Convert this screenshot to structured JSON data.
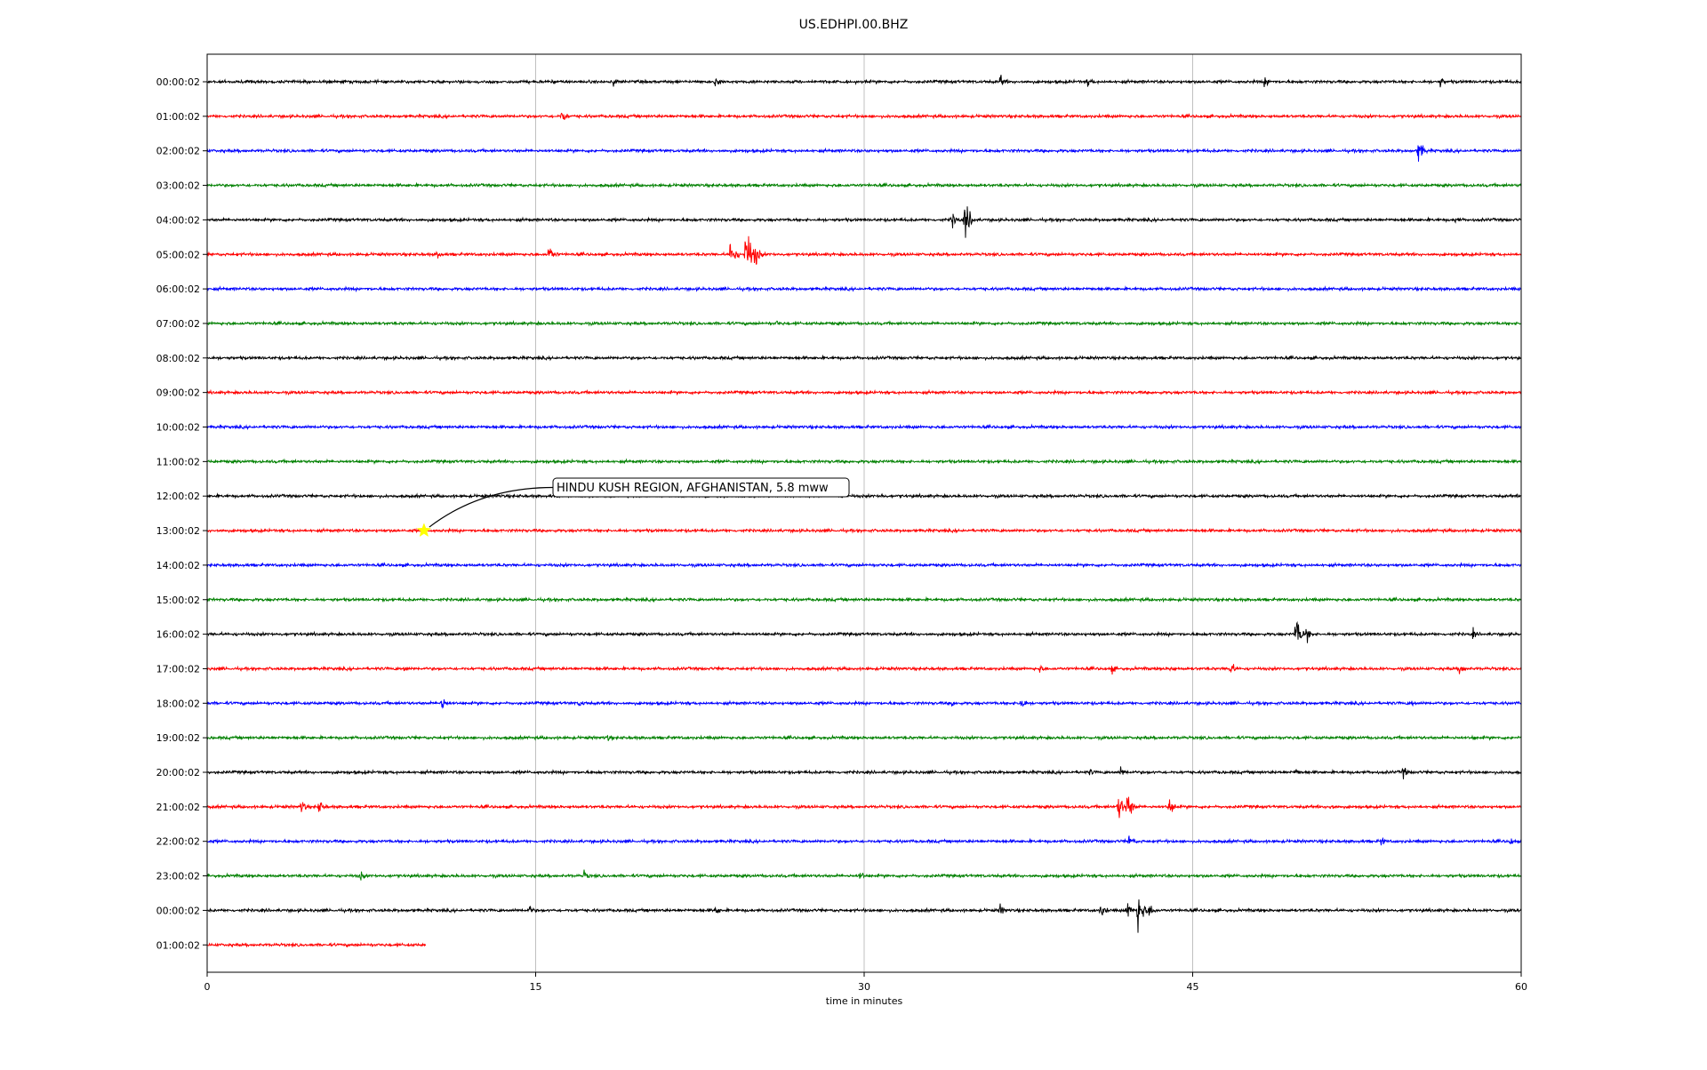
{
  "chart_data": {
    "type": "line",
    "title": "US.EDHPI.00.BHZ",
    "xlabel": "time in minutes",
    "ylabel": "",
    "xlim": [
      0,
      60
    ],
    "xticks": [
      0,
      15,
      30,
      45,
      60
    ],
    "grid": "vertical at x ticks",
    "row_labels": [
      "00:00:02",
      "01:00:02",
      "02:00:02",
      "03:00:02",
      "04:00:02",
      "05:00:02",
      "06:00:02",
      "07:00:02",
      "08:00:02",
      "09:00:02",
      "10:00:02",
      "11:00:02",
      "12:00:02",
      "13:00:02",
      "14:00:02",
      "15:00:02",
      "16:00:02",
      "17:00:02",
      "18:00:02",
      "19:00:02",
      "20:00:02",
      "21:00:02",
      "22:00:02",
      "23:00:02",
      "00:00:02",
      "01:00:02"
    ],
    "colors": [
      "#000000",
      "#ff0000",
      "#0000ff",
      "#008000"
    ],
    "last_trace_end_minute": 10,
    "annotation": {
      "text": "HINDU KUSH REGION, AFGHANISTAN, 5.8 mww",
      "row_index": 13,
      "minute": 9.9,
      "marker": "star",
      "marker_color": "#ffff00"
    },
    "events": [
      {
        "row": 0,
        "minute": 18.5,
        "amp": 0.35
      },
      {
        "row": 0,
        "minute": 23.2,
        "amp": 0.4
      },
      {
        "row": 0,
        "minute": 36.2,
        "amp": 0.45
      },
      {
        "row": 0,
        "minute": 40.2,
        "amp": 0.35
      },
      {
        "row": 0,
        "minute": 48.3,
        "amp": 0.4
      },
      {
        "row": 0,
        "minute": 56.3,
        "amp": 0.35
      },
      {
        "row": 1,
        "minute": 16.2,
        "amp": 0.5
      },
      {
        "row": 2,
        "minute": 55.3,
        "amp": 0.8
      },
      {
        "row": 4,
        "minute": 34.6,
        "amp": 1.3
      },
      {
        "row": 4,
        "minute": 34.0,
        "amp": 0.5
      },
      {
        "row": 4,
        "minute": 57.0,
        "amp": 0.25
      },
      {
        "row": 5,
        "minute": 10.5,
        "amp": 0.35
      },
      {
        "row": 5,
        "minute": 15.6,
        "amp": 0.65
      },
      {
        "row": 5,
        "minute": 23.9,
        "amp": 0.95
      },
      {
        "row": 5,
        "minute": 24.6,
        "amp": 2.0
      },
      {
        "row": 5,
        "minute": 25.0,
        "amp": 0.8
      },
      {
        "row": 7,
        "minute": 26.0,
        "amp": 0.2
      },
      {
        "row": 12,
        "minute": 30.8,
        "amp": 0.2
      },
      {
        "row": 16,
        "minute": 49.7,
        "amp": 1.2
      },
      {
        "row": 16,
        "minute": 50.2,
        "amp": 0.5
      },
      {
        "row": 16,
        "minute": 57.8,
        "amp": 0.3
      },
      {
        "row": 17,
        "minute": 9.0,
        "amp": 0.25
      },
      {
        "row": 17,
        "minute": 38.0,
        "amp": 0.3
      },
      {
        "row": 17,
        "minute": 41.3,
        "amp": 0.3
      },
      {
        "row": 17,
        "minute": 44.0,
        "amp": 0.25
      },
      {
        "row": 17,
        "minute": 46.7,
        "amp": 0.5
      },
      {
        "row": 17,
        "minute": 57.2,
        "amp": 0.5
      },
      {
        "row": 18,
        "minute": 10.7,
        "amp": 0.55
      },
      {
        "row": 18,
        "minute": 17.0,
        "amp": 0.3
      },
      {
        "row": 18,
        "minute": 34.0,
        "amp": 0.25
      },
      {
        "row": 18,
        "minute": 37.1,
        "amp": 0.65
      },
      {
        "row": 18,
        "minute": 55.0,
        "amp": 0.25
      },
      {
        "row": 19,
        "minute": 18.3,
        "amp": 0.25
      },
      {
        "row": 19,
        "minute": 57.8,
        "amp": 0.2
      },
      {
        "row": 20,
        "minute": 40.3,
        "amp": 0.25
      },
      {
        "row": 20,
        "minute": 41.7,
        "amp": 0.4
      },
      {
        "row": 20,
        "minute": 49.7,
        "amp": 0.3
      },
      {
        "row": 20,
        "minute": 54.6,
        "amp": 0.4
      },
      {
        "row": 21,
        "minute": 4.3,
        "amp": 0.45
      },
      {
        "row": 21,
        "minute": 5.1,
        "amp": 0.5
      },
      {
        "row": 21,
        "minute": 41.6,
        "amp": 1.0
      },
      {
        "row": 21,
        "minute": 42.0,
        "amp": 1.0
      },
      {
        "row": 21,
        "minute": 43.9,
        "amp": 0.7
      },
      {
        "row": 21,
        "minute": 51.3,
        "amp": 0.3
      },
      {
        "row": 22,
        "minute": 42.1,
        "amp": 0.45
      },
      {
        "row": 22,
        "minute": 53.6,
        "amp": 0.3
      },
      {
        "row": 22,
        "minute": 59.5,
        "amp": 0.3
      },
      {
        "row": 23,
        "minute": 7.0,
        "amp": 0.35
      },
      {
        "row": 23,
        "minute": 17.2,
        "amp": 0.35
      },
      {
        "row": 23,
        "minute": 29.8,
        "amp": 0.35
      },
      {
        "row": 24,
        "minute": 14.7,
        "amp": 0.35
      },
      {
        "row": 24,
        "minute": 23.2,
        "amp": 0.35
      },
      {
        "row": 24,
        "minute": 36.2,
        "amp": 0.4
      },
      {
        "row": 24,
        "minute": 40.8,
        "amp": 0.5
      },
      {
        "row": 24,
        "minute": 42.0,
        "amp": 0.6
      },
      {
        "row": 24,
        "minute": 42.5,
        "amp": 1.4
      },
      {
        "row": 24,
        "minute": 43.0,
        "amp": 0.5
      }
    ]
  }
}
